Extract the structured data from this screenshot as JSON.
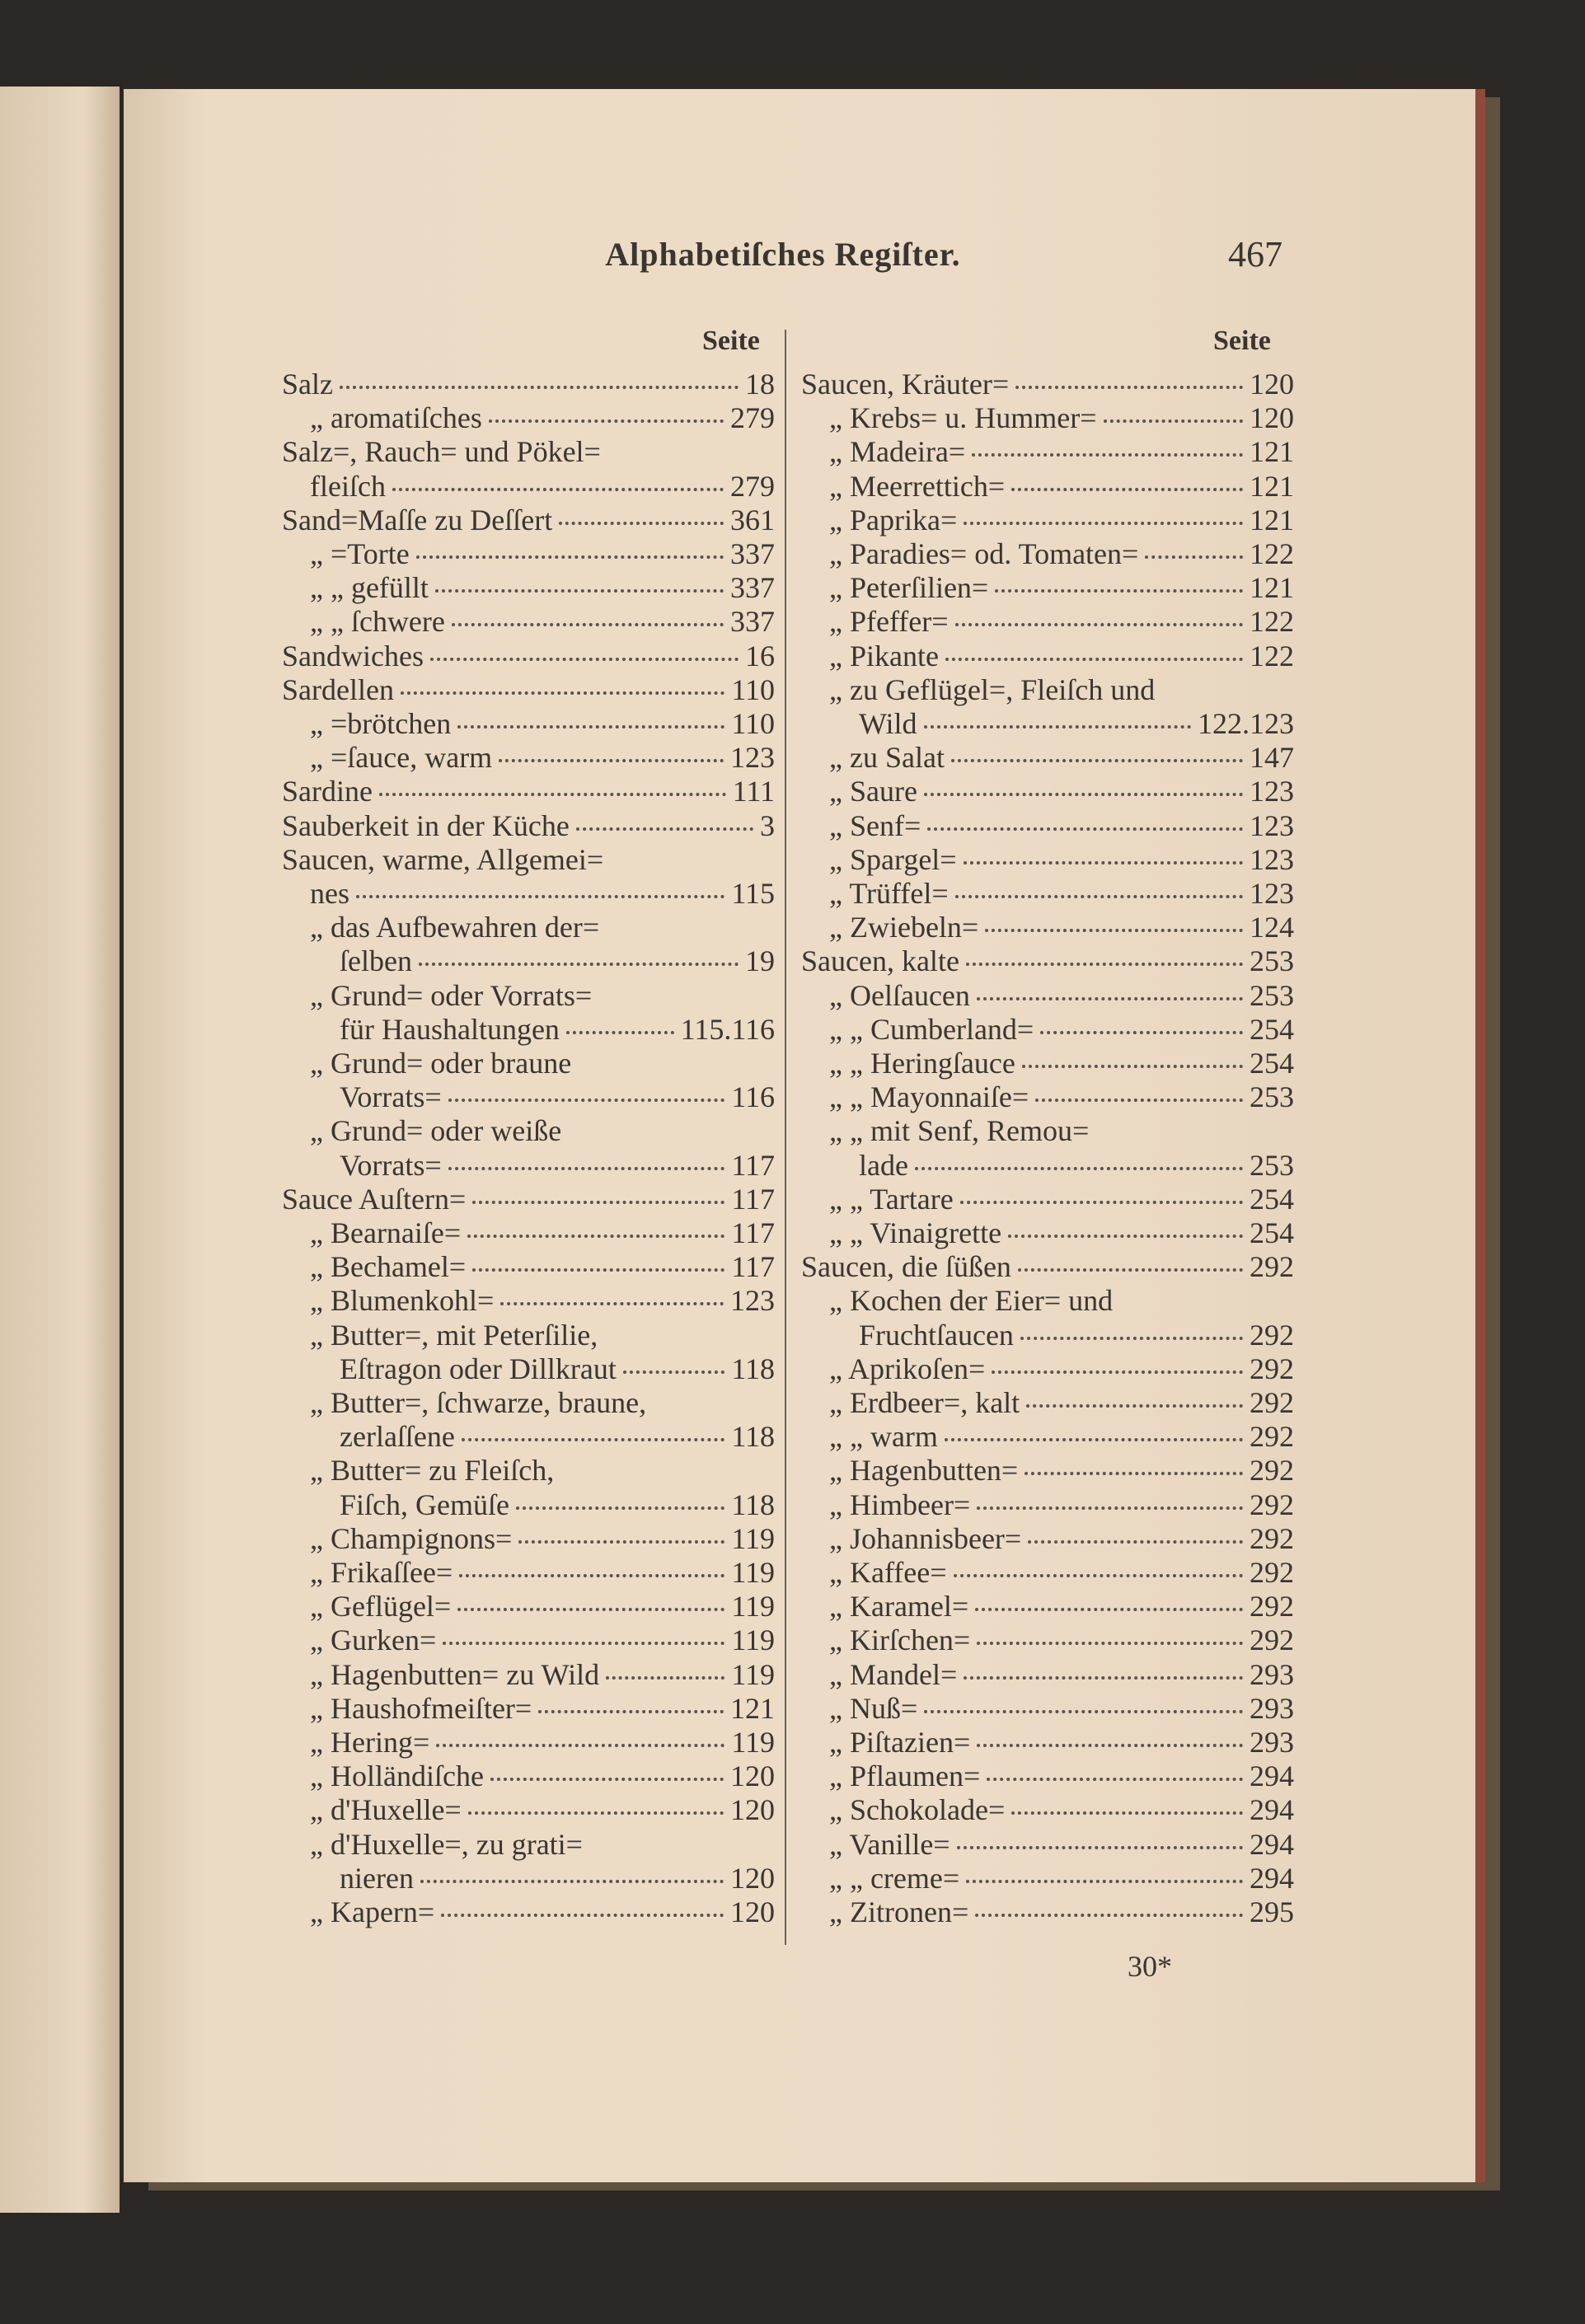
{
  "header": {
    "title": "Alphabetiſches Regiſter.",
    "page_number": "467"
  },
  "left": {
    "heading": "Seite",
    "entries": [
      {
        "lines": [
          "Salz"
        ],
        "page": "18"
      },
      {
        "lines": [
          "„ aromatiſches"
        ],
        "page": "279"
      },
      {
        "lines": [
          "Salz=, Rauch= und Pökel=",
          "fleiſch"
        ],
        "page": "279"
      },
      {
        "lines": [
          "Sand=Maſſe zu Deſſert"
        ],
        "page": "361"
      },
      {
        "lines": [
          "„ =Torte"
        ],
        "page": "337"
      },
      {
        "lines": [
          "„ „ gefüllt"
        ],
        "page": "337"
      },
      {
        "lines": [
          "„ „ ſchwere"
        ],
        "page": "337"
      },
      {
        "lines": [
          "Sandwiches"
        ],
        "page": "16"
      },
      {
        "lines": [
          "Sardellen"
        ],
        "page": "110"
      },
      {
        "lines": [
          "„ =brötchen"
        ],
        "page": "110"
      },
      {
        "lines": [
          "„ =ſauce, warm"
        ],
        "page": "123"
      },
      {
        "lines": [
          "Sardine"
        ],
        "page": "111"
      },
      {
        "lines": [
          "Sauberkeit in der Küche"
        ],
        "page": "3"
      },
      {
        "lines": [
          "Saucen, warme, Allgemei=",
          "nes"
        ],
        "page": "115"
      },
      {
        "lines": [
          "„ das Aufbewahren der=",
          "ſelben"
        ],
        "page": "19"
      },
      {
        "lines": [
          "„ Grund= oder Vorrats=",
          "für Haushaltungen"
        ],
        "page": "115.116"
      },
      {
        "lines": [
          "„ Grund= oder braune",
          "Vorrats="
        ],
        "page": "116"
      },
      {
        "lines": [
          "„ Grund= oder weiße",
          "Vorrats="
        ],
        "page": "117"
      },
      {
        "lines": [
          "Sauce Auſtern="
        ],
        "page": "117"
      },
      {
        "lines": [
          "„ Bearnaiſe="
        ],
        "page": "117"
      },
      {
        "lines": [
          "„ Bechamel="
        ],
        "page": "117"
      },
      {
        "lines": [
          "„ Blumenkohl="
        ],
        "page": "123"
      },
      {
        "lines": [
          "„ Butter=, mit Peterſilie,",
          "Eſtragon oder Dillkraut"
        ],
        "page": "118"
      },
      {
        "lines": [
          "„ Butter=, ſchwarze, braune,",
          "zerlaſſene"
        ],
        "page": "118"
      },
      {
        "lines": [
          "„ Butter= zu Fleiſch,",
          "Fiſch, Gemüſe"
        ],
        "page": "118"
      },
      {
        "lines": [
          "„ Champignons="
        ],
        "page": "119"
      },
      {
        "lines": [
          "„ Frikaſſee="
        ],
        "page": "119"
      },
      {
        "lines": [
          "„ Geflügel="
        ],
        "page": "119"
      },
      {
        "lines": [
          "„ Gurken="
        ],
        "page": "119"
      },
      {
        "lines": [
          "„ Hagenbutten= zu Wild"
        ],
        "page": "119"
      },
      {
        "lines": [
          "„ Haushofmeiſter="
        ],
        "page": "121"
      },
      {
        "lines": [
          "„ Hering="
        ],
        "page": "119"
      },
      {
        "lines": [
          "„ Holländiſche"
        ],
        "page": "120"
      },
      {
        "lines": [
          "„ d'Huxelle="
        ],
        "page": "120"
      },
      {
        "lines": [
          "„ d'Huxelle=, zu grati=",
          "nieren"
        ],
        "page": "120"
      },
      {
        "lines": [
          "„ Kapern="
        ],
        "page": "120"
      }
    ]
  },
  "right": {
    "heading": "Seite",
    "entries": [
      {
        "lines": [
          "Saucen, Kräuter="
        ],
        "page": "120"
      },
      {
        "lines": [
          "„ Krebs= u. Hummer="
        ],
        "page": "120"
      },
      {
        "lines": [
          "„ Madeira="
        ],
        "page": "121"
      },
      {
        "lines": [
          "„ Meerrettich="
        ],
        "page": "121"
      },
      {
        "lines": [
          "„ Paprika="
        ],
        "page": "121"
      },
      {
        "lines": [
          "„ Paradies= od. Tomaten="
        ],
        "page": "122"
      },
      {
        "lines": [
          "„ Peterſilien="
        ],
        "page": "121"
      },
      {
        "lines": [
          "„ Pfeffer="
        ],
        "page": "122"
      },
      {
        "lines": [
          "„ Pikante"
        ],
        "page": "122"
      },
      {
        "lines": [
          "„ zu Geflügel=, Fleiſch und",
          "Wild"
        ],
        "page": "122.123"
      },
      {
        "lines": [
          "„ zu Salat"
        ],
        "page": "147"
      },
      {
        "lines": [
          "„ Saure"
        ],
        "page": "123"
      },
      {
        "lines": [
          "„ Senf="
        ],
        "page": "123"
      },
      {
        "lines": [
          "„ Spargel="
        ],
        "page": "123"
      },
      {
        "lines": [
          "„ Trüffel="
        ],
        "page": "123"
      },
      {
        "lines": [
          "„ Zwiebeln="
        ],
        "page": "124"
      },
      {
        "lines": [
          "Saucen, kalte"
        ],
        "page": "253"
      },
      {
        "lines": [
          "„ Oelſaucen"
        ],
        "page": "253"
      },
      {
        "lines": [
          "„ „ Cumberland="
        ],
        "page": "254"
      },
      {
        "lines": [
          "„ „ Heringſauce"
        ],
        "page": "254"
      },
      {
        "lines": [
          "„ „ Mayonnaiſe="
        ],
        "page": "253"
      },
      {
        "lines": [
          "„ „ mit Senf, Remou=",
          "lade"
        ],
        "page": "253"
      },
      {
        "lines": [
          "„ „ Tartare"
        ],
        "page": "254"
      },
      {
        "lines": [
          "„ „ Vinaigrette"
        ],
        "page": "254"
      },
      {
        "lines": [
          "Saucen, die ſüßen"
        ],
        "page": "292"
      },
      {
        "lines": [
          "„ Kochen der Eier= und",
          "Fruchtſaucen"
        ],
        "page": "292"
      },
      {
        "lines": [
          "„ Aprikoſen="
        ],
        "page": "292"
      },
      {
        "lines": [
          "„ Erdbeer=, kalt"
        ],
        "page": "292"
      },
      {
        "lines": [
          "„ „ warm"
        ],
        "page": "292"
      },
      {
        "lines": [
          "„ Hagenbutten="
        ],
        "page": "292"
      },
      {
        "lines": [
          "„ Himbeer="
        ],
        "page": "292"
      },
      {
        "lines": [
          "„ Johannisbeer="
        ],
        "page": "292"
      },
      {
        "lines": [
          "„ Kaffee="
        ],
        "page": "292"
      },
      {
        "lines": [
          "„ Karamel="
        ],
        "page": "292"
      },
      {
        "lines": [
          "„ Kirſchen="
        ],
        "page": "292"
      },
      {
        "lines": [
          "„ Mandel="
        ],
        "page": "293"
      },
      {
        "lines": [
          "„ Nuß="
        ],
        "page": "293"
      },
      {
        "lines": [
          "„ Piſtazien="
        ],
        "page": "293"
      },
      {
        "lines": [
          "„ Pflaumen="
        ],
        "page": "294"
      },
      {
        "lines": [
          "„ Schokolade="
        ],
        "page": "294"
      },
      {
        "lines": [
          "„ Vanille="
        ],
        "page": "294"
      },
      {
        "lines": [
          "„ „ creme="
        ],
        "page": "294"
      },
      {
        "lines": [
          "„ Zitronen="
        ],
        "page": "295"
      }
    ]
  },
  "footer": {
    "signature": "30*"
  }
}
